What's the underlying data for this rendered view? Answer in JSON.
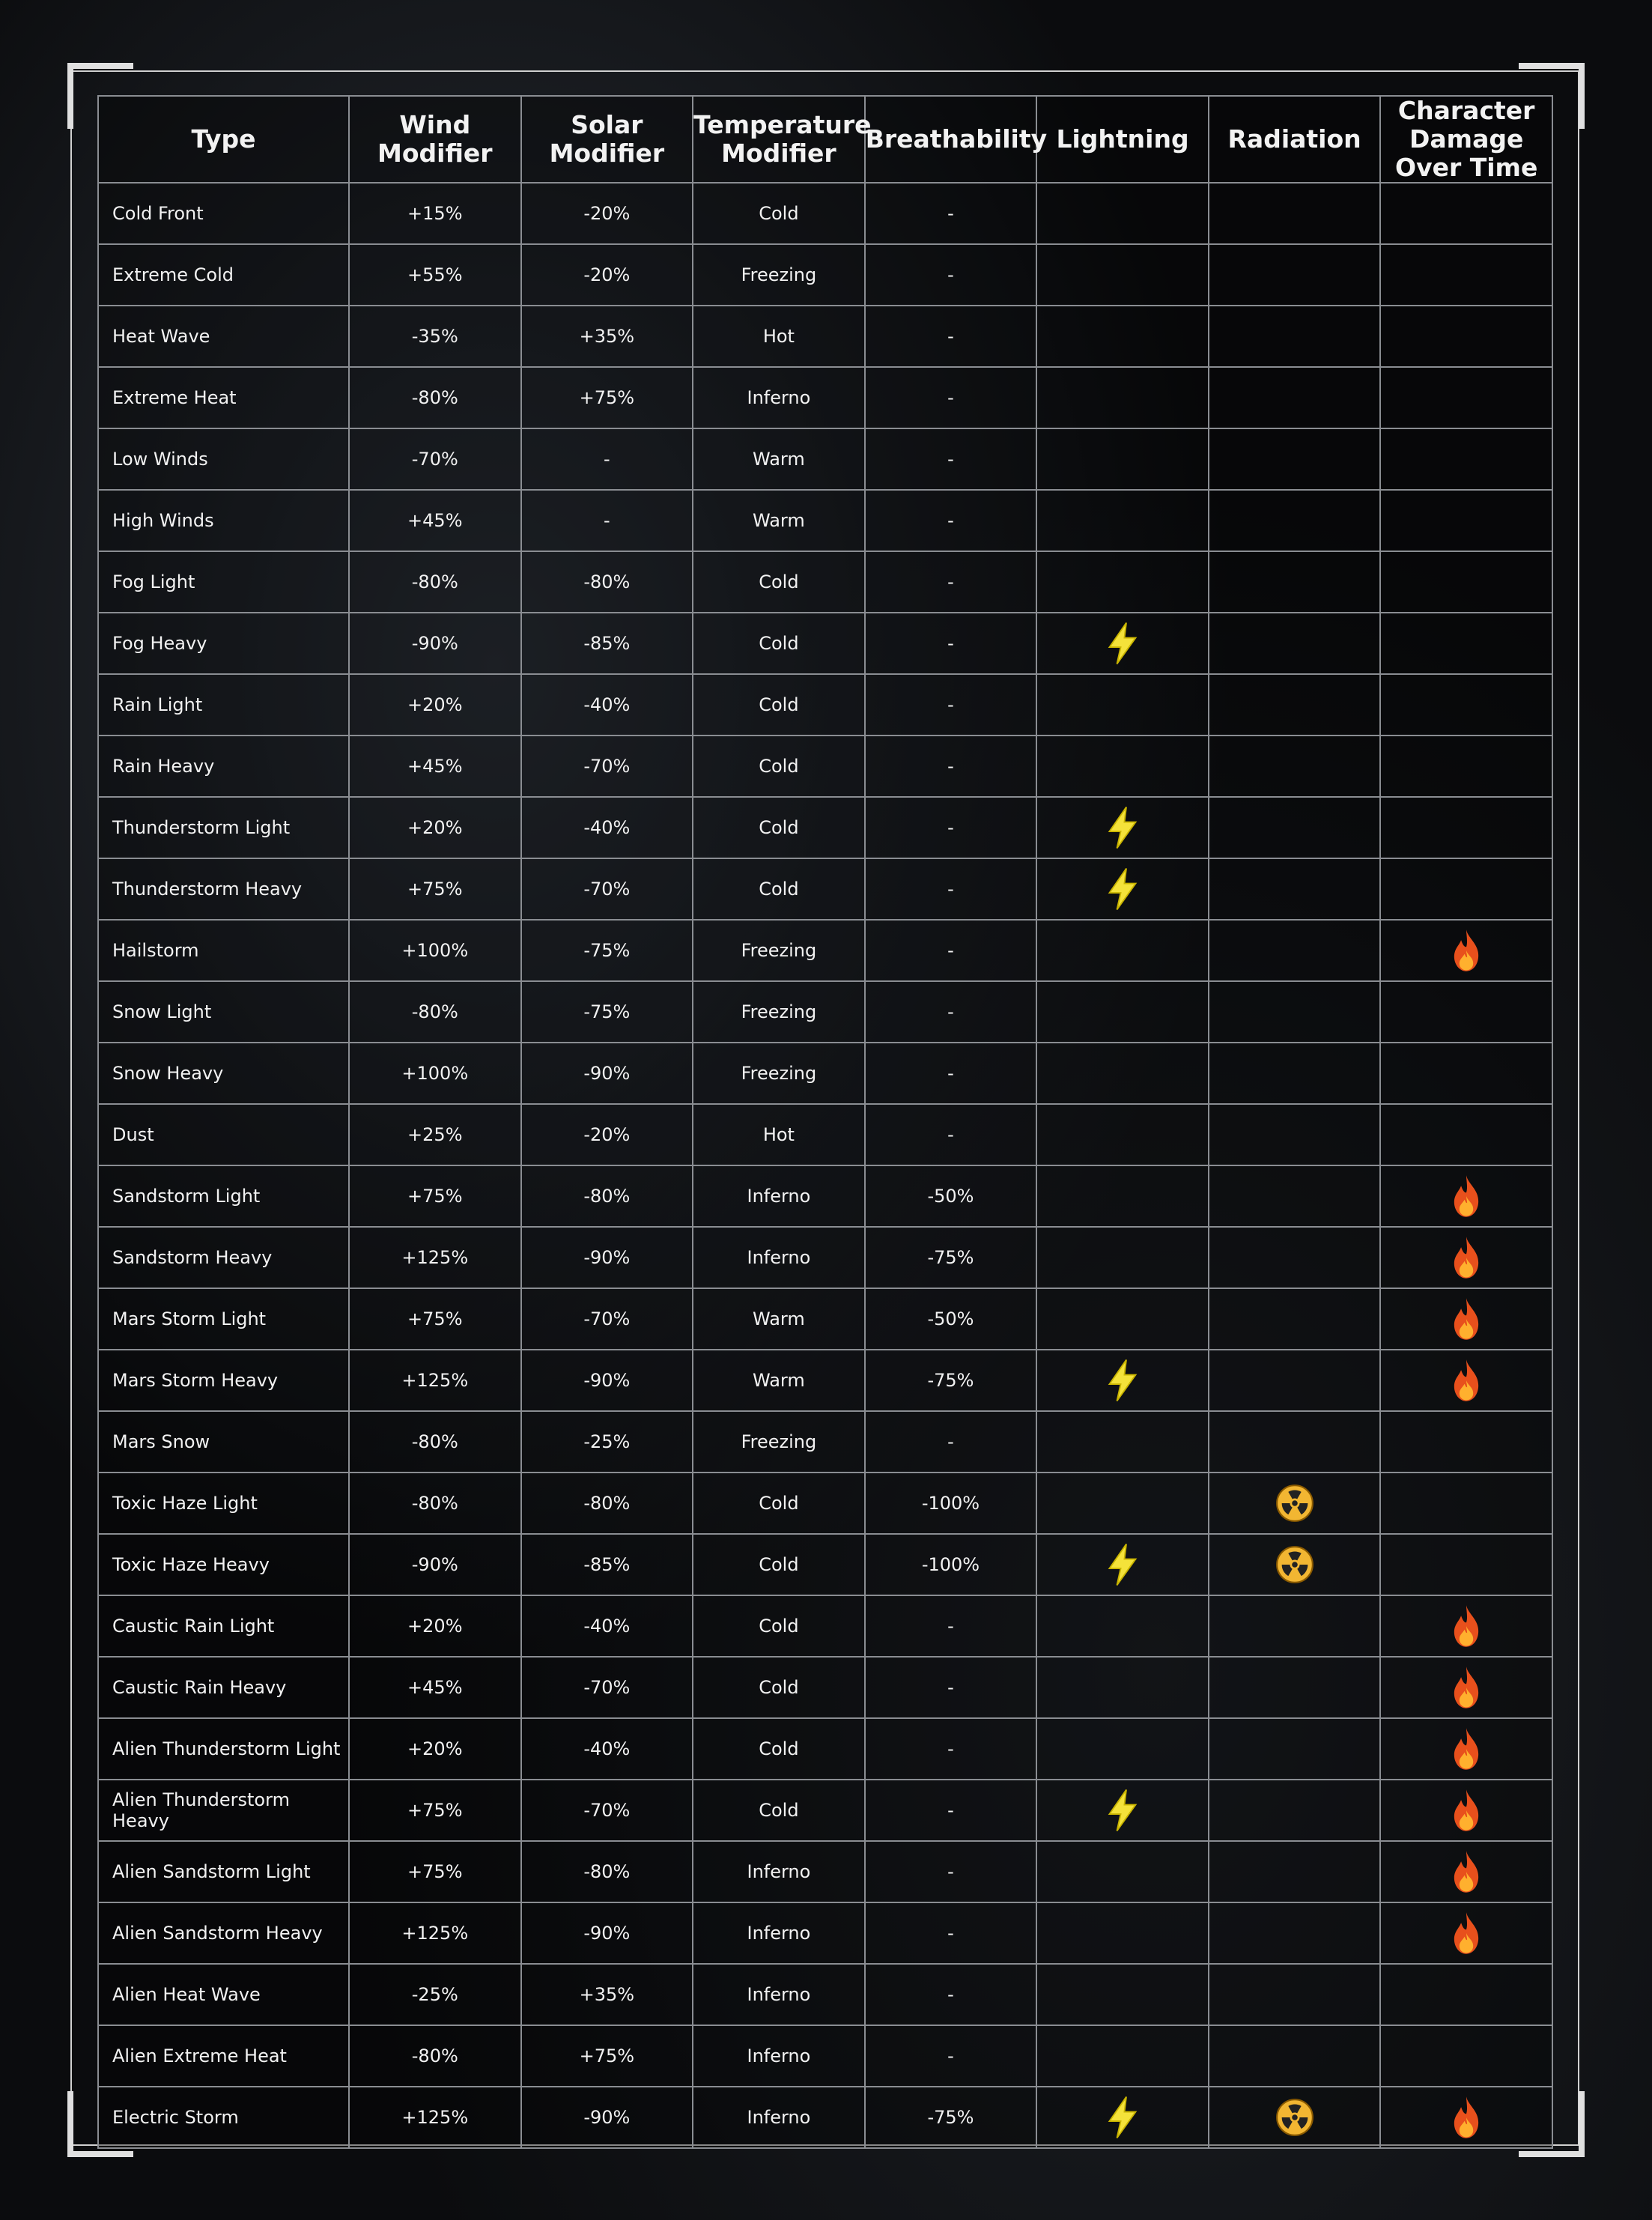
{
  "table": {
    "header": [
      "Type",
      "Wind Modifier",
      "Solar Modifier",
      "Temperature Modifier",
      "Breathability",
      "Lightning",
      "Radiation",
      "Character Damage Over Time"
    ],
    "rows": [
      {
        "cells": [
          "Cold Front",
          "+15%",
          "-20%",
          "Cold",
          "-"
        ],
        "lightning": false,
        "radiation": false,
        "damage": false
      },
      {
        "cells": [
          "Extreme Cold",
          "+55%",
          "-20%",
          "Freezing",
          "-"
        ],
        "lightning": false,
        "radiation": false,
        "damage": false
      },
      {
        "cells": [
          "Heat Wave",
          "-35%",
          "+35%",
          "Hot",
          "-"
        ],
        "lightning": false,
        "radiation": false,
        "damage": false
      },
      {
        "cells": [
          "Extreme Heat",
          "-80%",
          "+75%",
          "Inferno",
          "-"
        ],
        "lightning": false,
        "radiation": false,
        "damage": false
      },
      {
        "cells": [
          "Low Winds",
          "-70%",
          "-",
          "Warm",
          "-"
        ],
        "lightning": false,
        "radiation": false,
        "damage": false
      },
      {
        "cells": [
          "High Winds",
          "+45%",
          "-",
          "Warm",
          "-"
        ],
        "lightning": false,
        "radiation": false,
        "damage": false
      },
      {
        "cells": [
          "Fog Light",
          "-80%",
          "-80%",
          "Cold",
          "-"
        ],
        "lightning": false,
        "radiation": false,
        "damage": false
      },
      {
        "cells": [
          "Fog Heavy",
          "-90%",
          "-85%",
          "Cold",
          "-"
        ],
        "lightning": true,
        "radiation": false,
        "damage": false
      },
      {
        "cells": [
          "Rain Light",
          "+20%",
          "-40%",
          "Cold",
          "-"
        ],
        "lightning": false,
        "radiation": false,
        "damage": false
      },
      {
        "cells": [
          "Rain Heavy",
          "+45%",
          "-70%",
          "Cold",
          "-"
        ],
        "lightning": false,
        "radiation": false,
        "damage": false
      },
      {
        "cells": [
          "Thunderstorm Light",
          "+20%",
          "-40%",
          "Cold",
          "-"
        ],
        "lightning": true,
        "radiation": false,
        "damage": false
      },
      {
        "cells": [
          "Thunderstorm Heavy",
          "+75%",
          "-70%",
          "Cold",
          "-"
        ],
        "lightning": true,
        "radiation": false,
        "damage": false
      },
      {
        "cells": [
          "Hailstorm",
          "+100%",
          "-75%",
          "Freezing",
          "-"
        ],
        "lightning": false,
        "radiation": false,
        "damage": true
      },
      {
        "cells": [
          "Snow Light",
          "-80%",
          "-75%",
          "Freezing",
          "-"
        ],
        "lightning": false,
        "radiation": false,
        "damage": false
      },
      {
        "cells": [
          "Snow Heavy",
          "+100%",
          "-90%",
          "Freezing",
          "-"
        ],
        "lightning": false,
        "radiation": false,
        "damage": false
      },
      {
        "cells": [
          "Dust",
          "+25%",
          "-20%",
          "Hot",
          "-"
        ],
        "lightning": false,
        "radiation": false,
        "damage": false
      },
      {
        "cells": [
          "Sandstorm Light",
          "+75%",
          "-80%",
          "Inferno",
          "-50%"
        ],
        "lightning": false,
        "radiation": false,
        "damage": true
      },
      {
        "cells": [
          "Sandstorm Heavy",
          "+125%",
          "-90%",
          "Inferno",
          "-75%"
        ],
        "lightning": false,
        "radiation": false,
        "damage": true
      },
      {
        "cells": [
          "Mars Storm Light",
          "+75%",
          "-70%",
          "Warm",
          "-50%"
        ],
        "lightning": false,
        "radiation": false,
        "damage": true
      },
      {
        "cells": [
          "Mars Storm Heavy",
          "+125%",
          "-90%",
          "Warm",
          "-75%"
        ],
        "lightning": true,
        "radiation": false,
        "damage": true
      },
      {
        "cells": [
          "Mars Snow",
          "-80%",
          "-25%",
          "Freezing",
          "-"
        ],
        "lightning": false,
        "radiation": false,
        "damage": false
      },
      {
        "cells": [
          "Toxic Haze Light",
          "-80%",
          "-80%",
          "Cold",
          "-100%"
        ],
        "lightning": false,
        "radiation": true,
        "damage": false
      },
      {
        "cells": [
          "Toxic Haze Heavy",
          "-90%",
          "-85%",
          "Cold",
          "-100%"
        ],
        "lightning": true,
        "radiation": true,
        "damage": false
      },
      {
        "cells": [
          "Caustic Rain Light",
          "+20%",
          "-40%",
          "Cold",
          "-"
        ],
        "lightning": false,
        "radiation": false,
        "damage": true
      },
      {
        "cells": [
          "Caustic Rain Heavy",
          "+45%",
          "-70%",
          "Cold",
          "-"
        ],
        "lightning": false,
        "radiation": false,
        "damage": true
      },
      {
        "cells": [
          "Alien Thunderstorm Light",
          "+20%",
          "-40%",
          "Cold",
          "-"
        ],
        "lightning": false,
        "radiation": false,
        "damage": true
      },
      {
        "cells": [
          "Alien Thunderstorm Heavy",
          "+75%",
          "-70%",
          "Cold",
          "-"
        ],
        "lightning": true,
        "radiation": false,
        "damage": true
      },
      {
        "cells": [
          "Alien Sandstorm Light",
          "+75%",
          "-80%",
          "Inferno",
          "-"
        ],
        "lightning": false,
        "radiation": false,
        "damage": true
      },
      {
        "cells": [
          "Alien Sandstorm Heavy",
          "+125%",
          "-90%",
          "Inferno",
          "-"
        ],
        "lightning": false,
        "radiation": false,
        "damage": true
      },
      {
        "cells": [
          "Alien Heat Wave",
          "-25%",
          "+35%",
          "Inferno",
          "-"
        ],
        "lightning": false,
        "radiation": false,
        "damage": false
      },
      {
        "cells": [
          "Alien Extreme Heat",
          "-80%",
          "+75%",
          "Inferno",
          "-"
        ],
        "lightning": false,
        "radiation": false,
        "damage": false
      },
      {
        "cells": [
          "Electric Storm",
          "+125%",
          "-90%",
          "Inferno",
          "-75%"
        ],
        "lightning": true,
        "radiation": true,
        "damage": true
      }
    ]
  }
}
